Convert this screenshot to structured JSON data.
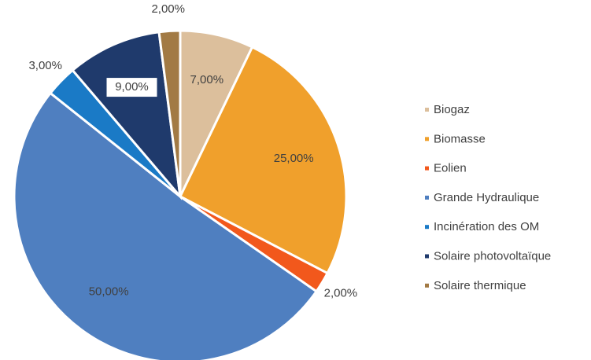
{
  "chart_data": {
    "type": "pie",
    "categories": [
      "Biogaz",
      "Biomasse",
      "Eolien",
      "Grande Hydraulique",
      "Incinération des OM",
      "Solaire photovoltaïque",
      "Solaire thermique"
    ],
    "values": [
      7,
      25,
      2,
      50,
      3,
      9,
      2
    ],
    "value_labels": [
      "7,00%",
      "25,00%",
      "2,00%",
      "50,00%",
      "3,00%",
      "9,00%",
      "2,00%"
    ],
    "colors": [
      "#dcbf9c",
      "#f0a02c",
      "#f2581c",
      "#4f7fc0",
      "#1a7ac6",
      "#1f3a6c",
      "#a27a44"
    ],
    "legend": "right"
  }
}
